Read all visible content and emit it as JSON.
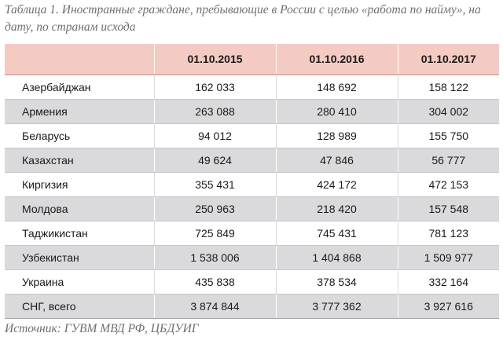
{
  "caption": "Таблица 1. Иностранные граждане, пребывающие в России с целью «работа по найму», на дату, по странам исхода",
  "table": {
    "headers": [
      "",
      "01.10.2015",
      "01.10.2016",
      "01.10.2017"
    ],
    "rows": [
      {
        "country": "Азербайджан",
        "v2015": "162 033",
        "v2016": "148 692",
        "v2017": "158 122"
      },
      {
        "country": "Армения",
        "v2015": "263 088",
        "v2016": "280 410",
        "v2017": "304 002"
      },
      {
        "country": "Беларусь",
        "v2015": "94 012",
        "v2016": "128 989",
        "v2017": "155 750"
      },
      {
        "country": "Казахстан",
        "v2015": "49 624",
        "v2016": "47 846",
        "v2017": "56 777"
      },
      {
        "country": "Киргизия",
        "v2015": "355 431",
        "v2016": "424 172",
        "v2017": "472 153"
      },
      {
        "country": "Молдова",
        "v2015": "250 963",
        "v2016": "218 420",
        "v2017": "157 548"
      },
      {
        "country": "Таджикистан",
        "v2015": "725 849",
        "v2016": "745 431",
        "v2017": "781 123"
      },
      {
        "country": "Узбекистан",
        "v2015": "1 538 006",
        "v2016": "1 404 868",
        "v2017": "1 509 977"
      },
      {
        "country": "Украина",
        "v2015": "435 838",
        "v2016": "378 534",
        "v2017": "332 164"
      },
      {
        "country": "СНГ, всего",
        "v2015": "3 874 844",
        "v2016": "3 777 362",
        "v2017": "3 927 616"
      }
    ]
  },
  "source": "Источник: ГУВМ МВД РФ, ЦБДУИГ",
  "colors": {
    "header_bg": "#f4cbc3",
    "stripe_bg": "#dadadd",
    "caption_text": "#6f6f6f"
  }
}
